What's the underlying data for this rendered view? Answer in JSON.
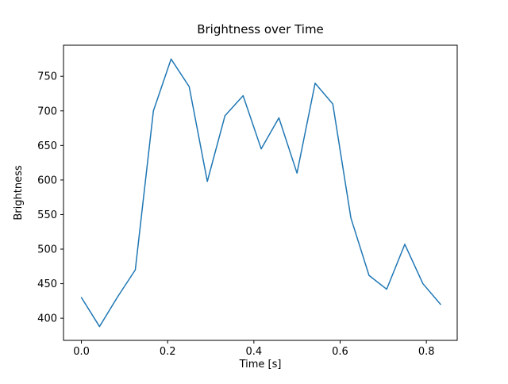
{
  "chart_data": {
    "type": "line",
    "title": "Brightness over Time",
    "xlabel": "Time [s]",
    "ylabel": "Brightness",
    "x": [
      0.0,
      0.042,
      0.083,
      0.125,
      0.167,
      0.208,
      0.25,
      0.292,
      0.333,
      0.375,
      0.417,
      0.458,
      0.5,
      0.542,
      0.583,
      0.625,
      0.667,
      0.708,
      0.75,
      0.792,
      0.833
    ],
    "y": [
      430,
      388,
      430,
      470,
      700,
      775,
      735,
      598,
      693,
      722,
      645,
      690,
      610,
      740,
      710,
      545,
      462,
      442,
      507,
      450,
      420
    ],
    "xlim": [
      -0.0415,
      0.8715
    ],
    "ylim": [
      368,
      795
    ],
    "xticks": [
      0.0,
      0.2,
      0.4,
      0.6,
      0.8
    ],
    "yticks": [
      400,
      450,
      500,
      550,
      600,
      650,
      700,
      750
    ],
    "line_color": "#1f77b4",
    "axis_color": "#000000",
    "background_color": "#ffffff",
    "grid": false,
    "legend": null
  }
}
